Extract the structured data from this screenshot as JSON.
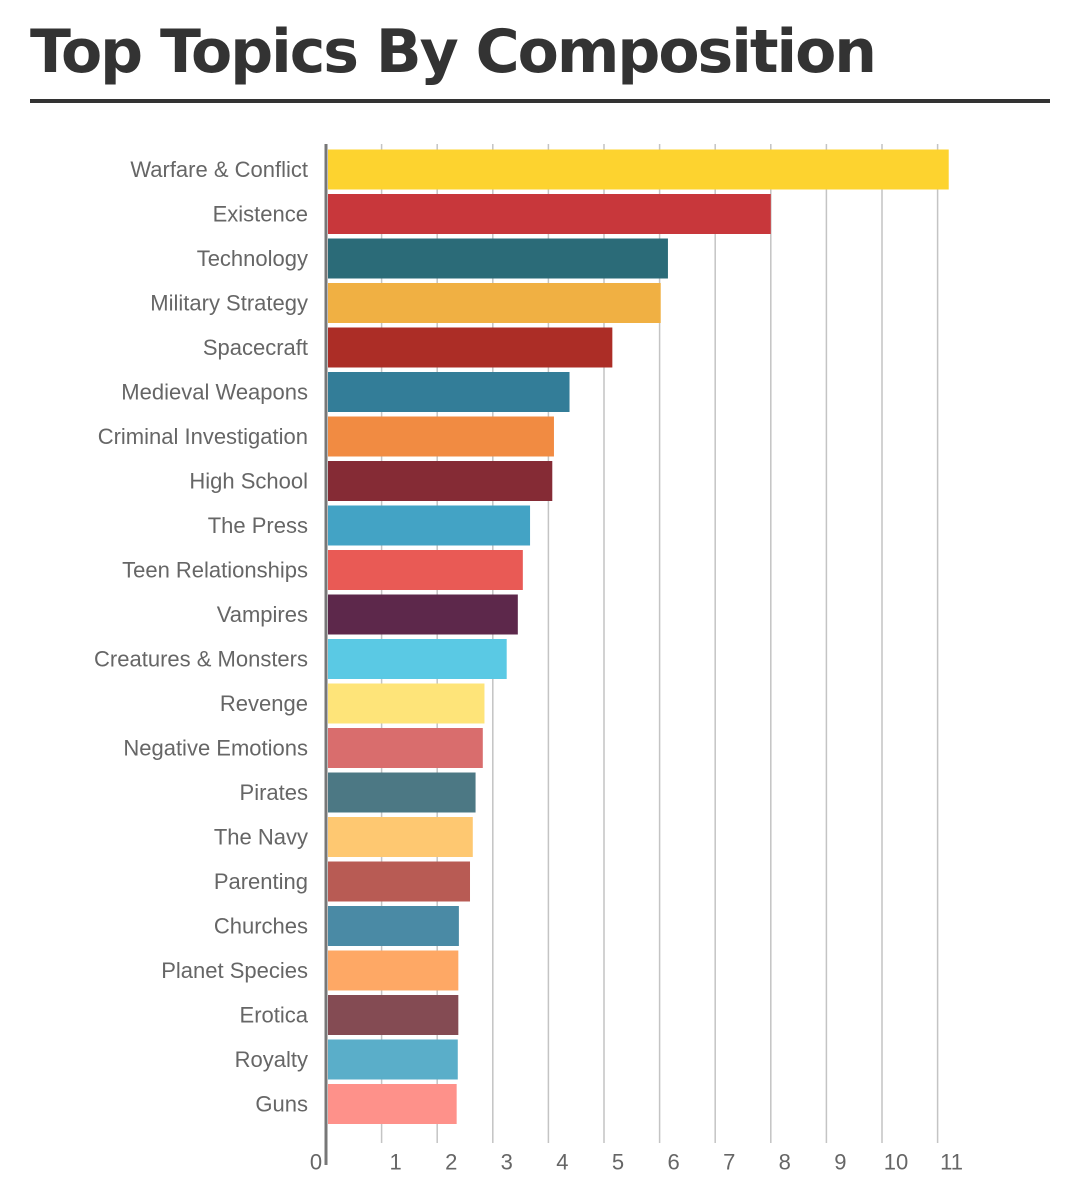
{
  "chart_data": {
    "type": "bar",
    "orientation": "horizontal",
    "title": "Top Topics By Composition",
    "categories": [
      "Warfare & Conflict",
      "Existence",
      "Technology",
      "Military Strategy",
      "Spacecraft",
      "Medieval Weapons",
      "Criminal Investigation",
      "High School",
      "The Press",
      "Teen Relationships",
      "Vampires",
      "Creatures & Monsters",
      "Revenge",
      "Negative Emotions",
      "Pirates",
      "The Navy",
      "Parenting",
      "Churches",
      "Planet Species",
      "Erotica",
      "Royalty",
      "Guns"
    ],
    "values": [
      11.2,
      8.0,
      6.15,
      6.02,
      5.15,
      4.38,
      4.1,
      4.07,
      3.67,
      3.54,
      3.45,
      3.25,
      2.85,
      2.82,
      2.69,
      2.64,
      2.59,
      2.39,
      2.38,
      2.38,
      2.37,
      2.35
    ],
    "colors": [
      "#fdd32f",
      "#c8373b",
      "#2b6b78",
      "#f0b043",
      "#ac2d26",
      "#337d98",
      "#f18b42",
      "#852b35",
      "#43a3c5",
      "#e95a55",
      "#5d284b",
      "#5ac9e4",
      "#fee479",
      "#d96d6d",
      "#4c7884",
      "#fec871",
      "#b85b54",
      "#4a8aa5",
      "#fea865",
      "#844b53",
      "#5aaec9",
      "#fe918a"
    ],
    "xticks": [
      0,
      1,
      2,
      3,
      4,
      5,
      6,
      7,
      8,
      9,
      10,
      11
    ],
    "xlim": [
      0,
      11.4
    ],
    "grid": true,
    "xlabel": "",
    "ylabel": ""
  }
}
